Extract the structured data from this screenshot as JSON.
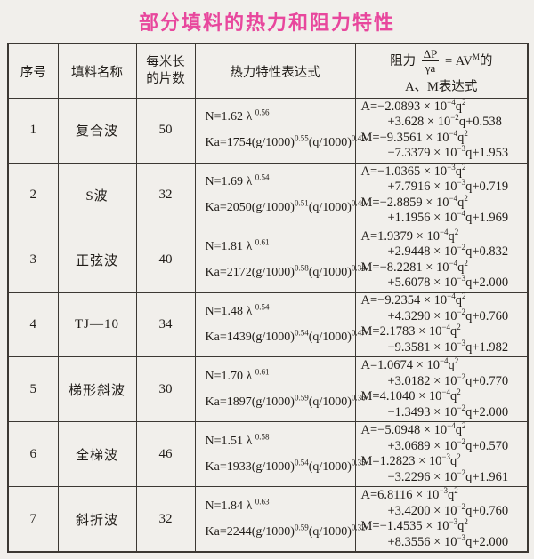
{
  "title": "部分填料的热力和阻力特性",
  "colors": {
    "title": "#e8479d",
    "text": "#201c18",
    "border": "#3c3833",
    "background": "#f1efeb"
  },
  "table": {
    "headers": {
      "index": "序号",
      "name": "填料名称",
      "pieces_line1": "每米长",
      "pieces_line2": "的片数",
      "thermal": "热力特性表达式",
      "resistance": {
        "prefix": "阻力",
        "frac_numerator": "ΔP",
        "frac_denominator": "γa",
        "equals": "= AV",
        "exponent": "M",
        "suffix": "的",
        "line2": "A、M表达式"
      }
    },
    "rows": [
      {
        "index": "1",
        "name": "复合波",
        "pieces": "50",
        "thermal_lines": [
          [
            "N=1.62 λ ",
            {
              "sup": "0.56"
            }
          ],
          [
            "Ka=1754(g/1000)",
            {
              "sup": "0.55"
            },
            "(q/1000)",
            {
              "sup": "0.42"
            }
          ]
        ],
        "resistance_lines": [
          [
            "A=−2.0893 × 10",
            {
              "sup": "−4"
            },
            "q",
            {
              "sup": "2"
            }
          ],
          [
            "+3.628 × 10",
            {
              "sup": "−2"
            },
            "q+0.538"
          ],
          [
            "M=−9.3561 × 10",
            {
              "sup": "−4"
            },
            "q",
            {
              "sup": "2"
            }
          ],
          [
            "−7.3379 × 10",
            {
              "sup": "−3"
            },
            "q+1.953"
          ]
        ]
      },
      {
        "index": "2",
        "name": "S波",
        "pieces": "32",
        "thermal_lines": [
          [
            "N=1.69 λ ",
            {
              "sup": "0.54"
            }
          ],
          [
            "Ka=2050(g/1000)",
            {
              "sup": "0.51"
            },
            "(q/1000)",
            {
              "sup": "0.40"
            }
          ]
        ],
        "resistance_lines": [
          [
            "A=−1.0365 × 10",
            {
              "sup": "−3"
            },
            "q",
            {
              "sup": "2"
            }
          ],
          [
            "+7.7916 × 10",
            {
              "sup": "−3"
            },
            "q+0.719"
          ],
          [
            "M=−2.8859 × 10",
            {
              "sup": "−4"
            },
            "q",
            {
              "sup": "2"
            }
          ],
          [
            "+1.1956 × 10",
            {
              "sup": "−4"
            },
            "q+1.969"
          ]
        ]
      },
      {
        "index": "3",
        "name": "正弦波",
        "pieces": "40",
        "thermal_lines": [
          [
            "N=1.81 λ ",
            {
              "sup": "0.61"
            }
          ],
          [
            "Ka=2172(g/1000)",
            {
              "sup": "0.58"
            },
            "(q/1000)",
            {
              "sup": "0.34"
            }
          ]
        ],
        "resistance_lines": [
          [
            "A=1.9379 × 10",
            {
              "sup": "−4"
            },
            "q",
            {
              "sup": "2"
            }
          ],
          [
            "+2.9448 × 10",
            {
              "sup": "−2"
            },
            "q+0.832"
          ],
          [
            "M=−8.2281 × 10",
            {
              "sup": "−4"
            },
            "q",
            {
              "sup": "2"
            }
          ],
          [
            "+5.6078 × 10",
            {
              "sup": "−3"
            },
            "q+2.000"
          ]
        ]
      },
      {
        "index": "4",
        "name": "TJ—10",
        "pieces": "34",
        "thermal_lines": [
          [
            "N=1.48 λ ",
            {
              "sup": "0.54"
            }
          ],
          [
            "Ka=1439(g/1000)",
            {
              "sup": "0.54"
            },
            "(q/1000)",
            {
              "sup": "0.47"
            }
          ]
        ],
        "resistance_lines": [
          [
            "A=−9.2354 × 10",
            {
              "sup": "−4"
            },
            "q",
            {
              "sup": "2"
            }
          ],
          [
            "+4.3290 × 10",
            {
              "sup": "−2"
            },
            "q+0.760"
          ],
          [
            "M=2.1783 × 10",
            {
              "sup": "−4"
            },
            "q",
            {
              "sup": "2"
            }
          ],
          [
            "−9.3581 × 10",
            {
              "sup": "−3"
            },
            "q+1.982"
          ]
        ]
      },
      {
        "index": "5",
        "name": "梯形斜波",
        "pieces": "30",
        "thermal_lines": [
          [
            "N=1.70 λ ",
            {
              "sup": "0.61"
            }
          ],
          [
            "Ka=1897(g/1000)",
            {
              "sup": "0.59"
            },
            "(q/1000)",
            {
              "sup": "0.36"
            }
          ]
        ],
        "resistance_lines": [
          [
            "A=1.0674 × 10",
            {
              "sup": "−4"
            },
            "q",
            {
              "sup": "2"
            }
          ],
          [
            "+3.0182 × 10",
            {
              "sup": "−2"
            },
            "q+0.770"
          ],
          [
            "M=4.1040 × 10",
            {
              "sup": "−4"
            },
            "q",
            {
              "sup": "2"
            }
          ],
          [
            "−1.3493 × 10",
            {
              "sup": "−2"
            },
            "q+2.000"
          ]
        ]
      },
      {
        "index": "6",
        "name": "全梯波",
        "pieces": "46",
        "thermal_lines": [
          [
            "N=1.51 λ ",
            {
              "sup": "0.58"
            }
          ],
          [
            "Ka=1933(g/1000)",
            {
              "sup": "0.54"
            },
            "(q/1000)",
            {
              "sup": "0.35"
            }
          ]
        ],
        "resistance_lines": [
          [
            "A=−5.0948 × 10",
            {
              "sup": "−4"
            },
            "q",
            {
              "sup": "2"
            }
          ],
          [
            "+3.0689 × 10",
            {
              "sup": "−2"
            },
            "q+0.570"
          ],
          [
            "M=1.2823 × 10",
            {
              "sup": "−3"
            },
            "q",
            {
              "sup": "2"
            }
          ],
          [
            "−3.2296 × 10",
            {
              "sup": "−2"
            },
            "q+1.961"
          ]
        ]
      },
      {
        "index": "7",
        "name": "斜折波",
        "pieces": "32",
        "thermal_lines": [
          [
            "N=1.84 λ ",
            {
              "sup": "0.63"
            }
          ],
          [
            "Ka=2244(g/1000)",
            {
              "sup": "0.59"
            },
            "(q/1000)",
            {
              "sup": "0.32"
            }
          ]
        ],
        "resistance_lines": [
          [
            "A=6.8116 × 10",
            {
              "sup": "−3"
            },
            "q",
            {
              "sup": "2"
            }
          ],
          [
            "+3.4200 × 10",
            {
              "sup": "−2"
            },
            "q+0.760"
          ],
          [
            "M=−1.4535 × 10",
            {
              "sup": "−3"
            },
            "q",
            {
              "sup": "2"
            }
          ],
          [
            "+8.3556 × 10",
            {
              "sup": "−3"
            },
            "q+2.000"
          ]
        ]
      }
    ]
  }
}
